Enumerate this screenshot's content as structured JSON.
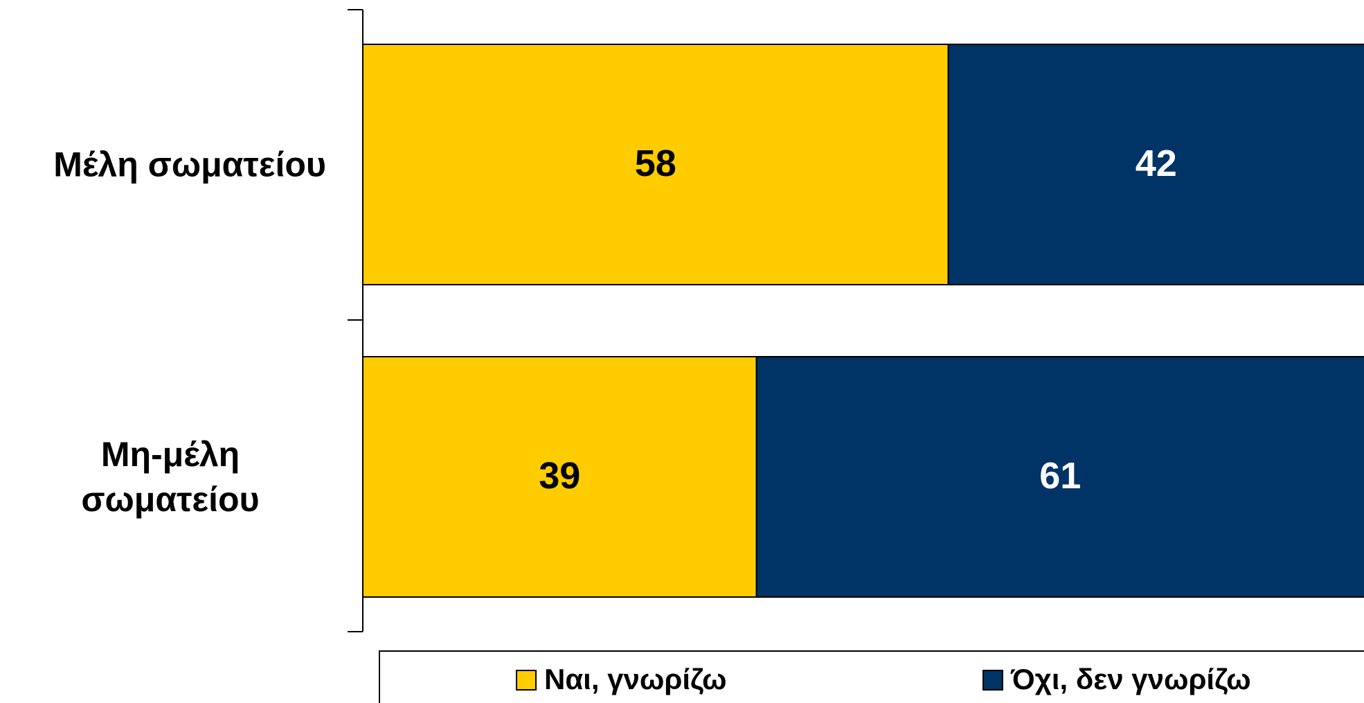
{
  "chart_data": {
    "type": "stacked-barh",
    "categories": [
      "Μέλη σωματείου",
      "Μη-μέλη σωματείου"
    ],
    "series": [
      {
        "name": "Ναι, γνωρίζω",
        "color": "#ffcc00",
        "label_color": "#000000",
        "values": [
          58,
          39
        ]
      },
      {
        "name": "Όχι, δεν γνωρίζω",
        "color": "#003366",
        "label_color": "#ffffff",
        "values": [
          42,
          61
        ]
      }
    ],
    "xlim": [
      0,
      100
    ],
    "legend": "bottom"
  }
}
